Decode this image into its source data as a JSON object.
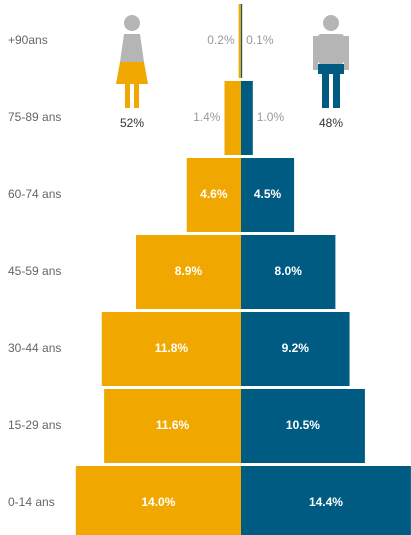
{
  "chart_data": {
    "type": "pyramid",
    "categories": [
      "+90ans",
      "75-89 ans",
      "60-74 ans",
      "45-59 ans",
      "30-44 ans",
      "15-29 ans",
      "0-14 ans"
    ],
    "series": [
      {
        "name": "Femmes",
        "color": "#f0a800",
        "side": "left",
        "values": [
          0.2,
          1.4,
          4.6,
          8.9,
          11.8,
          11.6,
          14.0
        ],
        "value_labels": [
          "0.2%",
          "1.4%",
          "4.6%",
          "8.9%",
          "11.8%",
          "11.6%",
          "14.0%"
        ],
        "share": 52,
        "share_label": "52%"
      },
      {
        "name": "Hommes",
        "color": "#005b82",
        "side": "right",
        "values": [
          0.1,
          1.0,
          4.5,
          8.0,
          9.2,
          10.5,
          14.4
        ],
        "value_labels": [
          "0.1%",
          "1.0%",
          "4.5%",
          "8.0%",
          "9.2%",
          "10.5%",
          "14.4%"
        ],
        "share": 48,
        "share_label": "48%"
      }
    ]
  }
}
